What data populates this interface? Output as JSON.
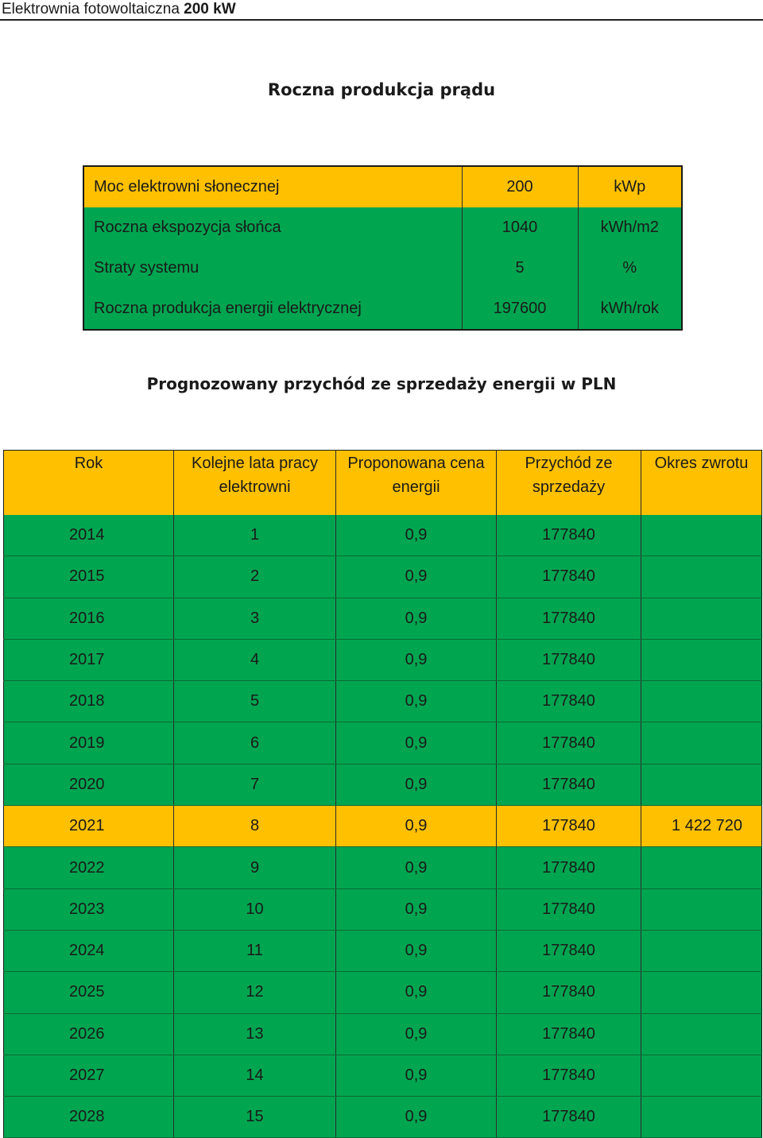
{
  "header": {
    "title_prefix": "Elektrownia fotowoltaiczna ",
    "title_bold": "200 kW"
  },
  "section1_title": "Roczna produkcja prądu",
  "parameters": [
    {
      "label": "Moc elektrowni słonecznej",
      "value": "200",
      "unit": "kWp",
      "highlight": true
    },
    {
      "label": "Roczna ekspozycja słońca",
      "value": "1040",
      "unit": "kWh/m2",
      "highlight": false
    },
    {
      "label": "Straty systemu",
      "value": "5",
      "unit": "%",
      "highlight": false
    },
    {
      "label": "Roczna produkcja energii elektrycznej",
      "value": "197600",
      "unit": "kWh/rok",
      "highlight": false
    }
  ],
  "section2_title": "Prognozowany przychód ze sprzedaży energii w PLN",
  "revenue_table": {
    "headers": [
      "Rok",
      "Kolejne lata pracy elektrowni",
      "Proponowana cena energii",
      "Przychód ze sprzedaży",
      "Okres zwrotu"
    ],
    "rows": [
      {
        "year": "2014",
        "n": "1",
        "price": "0,9",
        "revenue": "177840",
        "payback": ""
      },
      {
        "year": "2015",
        "n": "2",
        "price": "0,9",
        "revenue": "177840",
        "payback": ""
      },
      {
        "year": "2016",
        "n": "3",
        "price": "0,9",
        "revenue": "177840",
        "payback": ""
      },
      {
        "year": "2017",
        "n": "4",
        "price": "0,9",
        "revenue": "177840",
        "payback": ""
      },
      {
        "year": "2018",
        "n": "5",
        "price": "0,9",
        "revenue": "177840",
        "payback": ""
      },
      {
        "year": "2019",
        "n": "6",
        "price": "0,9",
        "revenue": "177840",
        "payback": ""
      },
      {
        "year": "2020",
        "n": "7",
        "price": "0,9",
        "revenue": "177840",
        "payback": ""
      },
      {
        "year": "2021",
        "n": "8",
        "price": "0,9",
        "revenue": "177840",
        "payback": "1 422 720",
        "highlight": true
      },
      {
        "year": "2022",
        "n": "9",
        "price": "0,9",
        "revenue": "177840",
        "payback": ""
      },
      {
        "year": "2023",
        "n": "10",
        "price": "0,9",
        "revenue": "177840",
        "payback": ""
      },
      {
        "year": "2024",
        "n": "11",
        "price": "0,9",
        "revenue": "177840",
        "payback": ""
      },
      {
        "year": "2025",
        "n": "12",
        "price": "0,9",
        "revenue": "177840",
        "payback": ""
      },
      {
        "year": "2026",
        "n": "13",
        "price": "0,9",
        "revenue": "177840",
        "payback": ""
      },
      {
        "year": "2027",
        "n": "14",
        "price": "0,9",
        "revenue": "177840",
        "payback": ""
      },
      {
        "year": "2028",
        "n": "15",
        "price": "0,9",
        "revenue": "177840",
        "payback": ""
      }
    ]
  },
  "colors": {
    "highlight": "#ffc000",
    "body": "#00a550"
  }
}
